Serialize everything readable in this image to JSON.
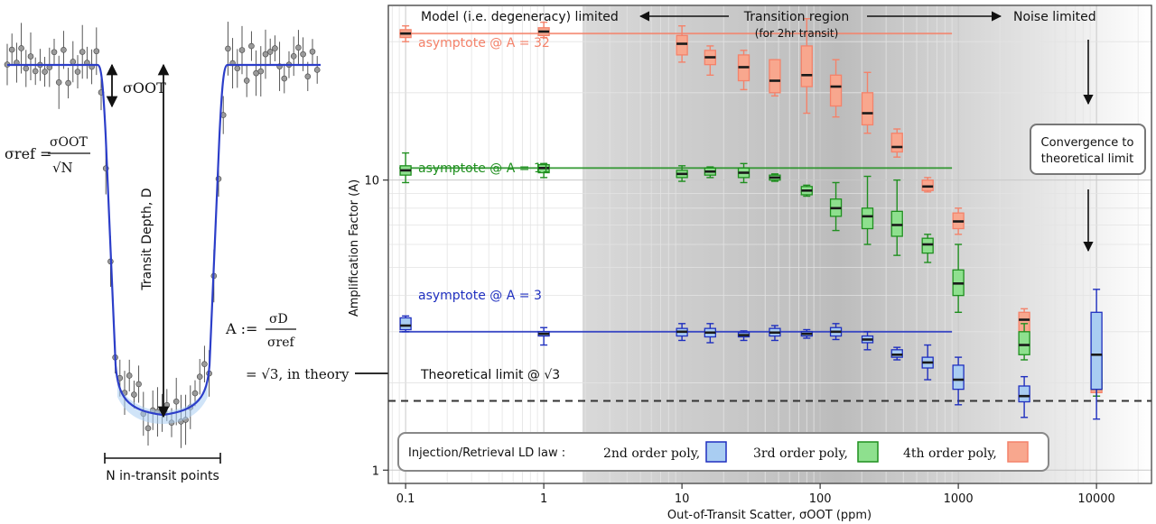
{
  "colors": {
    "order2": "#1f2fbf",
    "order3": "#1f8f1f",
    "order4": "#f4826a",
    "fill2": "#a9cdf2",
    "fill3": "#8ee08e",
    "fill4": "#f8a78e",
    "transit_curve": "#2c3ec9"
  },
  "left_panel": {
    "sigma_oot_label": "σOOT",
    "sigma_ref_lhs": "σref =",
    "sigma_ref_num": "σOOT",
    "sigma_ref_den": "√N",
    "depth_label": "Transit Depth, D",
    "amp_def_lhs": "A :=",
    "amp_def_num": "σD",
    "amp_def_den": "σref",
    "amp_theory": "= √3, in theory",
    "n_points_label": "N in-transit points"
  },
  "chart_data": {
    "type": "box",
    "xscale": "log",
    "yscale": "log",
    "xlim": [
      0.075,
      25000
    ],
    "ylim": [
      0.9,
      40
    ],
    "xlabel": "Out-of-Transit Scatter, σOOT (ppm)",
    "ylabel": "Amplification Factor (A)",
    "x_ticks": [
      "0.1",
      "1",
      "10",
      "100",
      "1000",
      "10000"
    ],
    "y_ticks": [
      "1",
      "10"
    ],
    "grid": true,
    "regions": {
      "model_limited": "Model (i.e. degeneracy) limited",
      "transition": "Transition region",
      "transition_sub": "(for 2hr transit)",
      "noise_limited": "Noise limited"
    },
    "asymptotes": [
      {
        "label": "asymptote @ A = 32",
        "value": 32,
        "order": "order4"
      },
      {
        "label": "asymptote @ A = 11",
        "value": 11,
        "order": "order3"
      },
      {
        "label": "asymptote @ A = 3",
        "value": 3,
        "order": "order2"
      }
    ],
    "theoretical_limit": {
      "label": "Theoretical limit @ √3",
      "value": 1.732
    },
    "convergence_note": [
      "Convergence to",
      "theoretical limit"
    ],
    "legend": {
      "title": "Injection/Retrieval LD law :",
      "entries": [
        "2nd order poly,",
        "3rd order poly,",
        "4th order poly,"
      ],
      "position": "bottom-center"
    },
    "series": [
      {
        "name": "2nd order poly",
        "key": "order2",
        "x": [
          0.1,
          1,
          10,
          16,
          28,
          47,
          80,
          130,
          220,
          360,
          600,
          1000,
          3000,
          10000
        ],
        "median": [
          3.15,
          2.95,
          3.0,
          2.98,
          2.92,
          2.98,
          2.95,
          3.0,
          2.82,
          2.5,
          2.35,
          2.05,
          1.8,
          2.5
        ],
        "q1": [
          3.05,
          2.9,
          2.9,
          2.88,
          2.88,
          2.9,
          2.9,
          2.9,
          2.75,
          2.45,
          2.25,
          1.9,
          1.72,
          1.9
        ],
        "q3": [
          3.35,
          3.0,
          3.08,
          3.08,
          2.98,
          3.08,
          3.0,
          3.1,
          2.9,
          2.6,
          2.45,
          2.3,
          1.95,
          3.5
        ],
        "low": [
          3.0,
          2.7,
          2.8,
          2.75,
          2.8,
          2.8,
          2.85,
          2.82,
          2.6,
          2.4,
          2.05,
          1.68,
          1.52,
          1.5
        ],
        "high": [
          3.4,
          3.1,
          3.2,
          3.2,
          3.02,
          3.15,
          3.05,
          3.2,
          3.0,
          2.65,
          2.7,
          2.45,
          2.1,
          4.2
        ]
      },
      {
        "name": "3rd order poly",
        "key": "order3",
        "x": [
          0.1,
          1,
          10,
          16,
          28,
          47,
          80,
          130,
          220,
          360,
          600,
          1000,
          3000,
          10000
        ],
        "median": [
          10.8,
          11.0,
          10.5,
          10.7,
          10.6,
          10.2,
          9.2,
          8.0,
          7.5,
          7.0,
          6.0,
          4.4,
          2.7,
          2.05
        ],
        "q1": [
          10.4,
          10.6,
          10.2,
          10.4,
          10.2,
          10.0,
          8.9,
          7.5,
          6.8,
          6.4,
          5.6,
          4.0,
          2.5,
          1.9
        ],
        "q3": [
          11.2,
          11.3,
          10.8,
          11.0,
          11.0,
          10.4,
          9.5,
          8.6,
          8.0,
          7.8,
          6.3,
          4.9,
          3.0,
          2.5
        ],
        "low": [
          9.8,
          10.2,
          9.9,
          10.2,
          9.8,
          9.9,
          8.8,
          6.7,
          6.0,
          5.5,
          5.2,
          3.5,
          2.4,
          1.8
        ],
        "high": [
          12.4,
          11.4,
          11.2,
          11.1,
          11.4,
          10.5,
          9.6,
          9.8,
          10.3,
          10.0,
          6.5,
          6.0,
          3.2,
          2.7
        ]
      },
      {
        "name": "4th order poly",
        "key": "order4",
        "x": [
          0.1,
          1,
          10,
          16,
          28,
          47,
          80,
          130,
          220,
          360,
          600,
          1000,
          3000,
          10000
        ],
        "median": [
          32.0,
          32.5,
          29.5,
          26.5,
          24.5,
          22.0,
          23.0,
          21.0,
          17.0,
          13.0,
          9.5,
          7.2,
          3.3,
          1.95
        ],
        "q1": [
          31.0,
          31.5,
          27.0,
          25.0,
          22.0,
          20.0,
          21.0,
          18.0,
          15.5,
          12.5,
          9.2,
          6.8,
          3.0,
          1.85
        ],
        "q3": [
          33.0,
          33.5,
          31.5,
          28.0,
          27.0,
          26.0,
          29.0,
          23.0,
          20.0,
          14.5,
          10.0,
          7.7,
          3.5,
          2.05
        ],
        "low": [
          30.0,
          31.0,
          25.5,
          23.0,
          20.5,
          19.5,
          17.0,
          16.5,
          14.5,
          12.0,
          9.1,
          6.5,
          2.9,
          1.8
        ],
        "high": [
          34.0,
          35.0,
          34.0,
          29.0,
          28.0,
          26.0,
          36.0,
          26.0,
          23.5,
          15.0,
          10.2,
          8.0,
          3.6,
          2.1
        ]
      }
    ]
  }
}
